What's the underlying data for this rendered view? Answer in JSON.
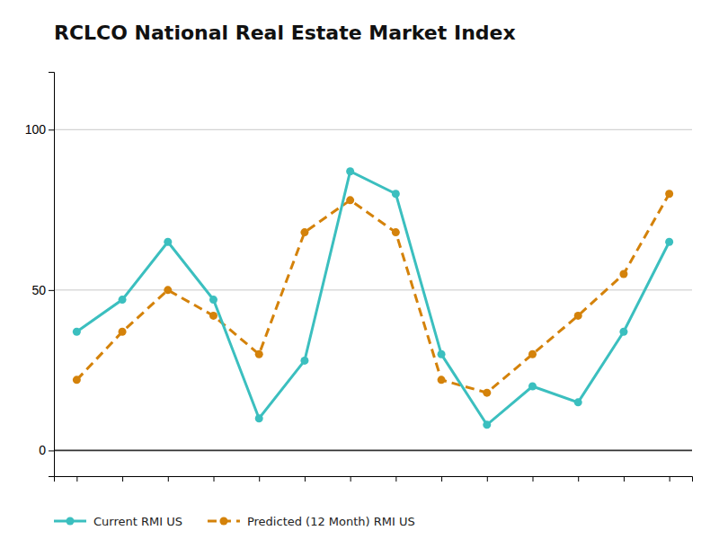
{
  "chart_data": {
    "type": "line",
    "title": "RCLCO National Real Estate Market Index",
    "categories": [
      null,
      null,
      null,
      null,
      null,
      null,
      null,
      null,
      null,
      null,
      null,
      null,
      null,
      null
    ],
    "series": [
      {
        "name": "Current RMI US",
        "color": "#3bbfbf",
        "marker": "circle",
        "line_style": "solid",
        "values": [
          37,
          47,
          65,
          47,
          10,
          28,
          87,
          80,
          30,
          8,
          20,
          15,
          37,
          65
        ]
      },
      {
        "name": "Predicted (12 Month) RMI US",
        "color": "#d4820a",
        "marker": "circle",
        "line_style": "dashed",
        "values": [
          22,
          37,
          50,
          42,
          30,
          68,
          78,
          68,
          22,
          18,
          30,
          42,
          55,
          80
        ]
      }
    ],
    "ylim": [
      -8,
      118
    ],
    "yticks": [
      0,
      50,
      100
    ],
    "grid": true,
    "legend": "bottom-left",
    "tick_labels": "y"
  }
}
